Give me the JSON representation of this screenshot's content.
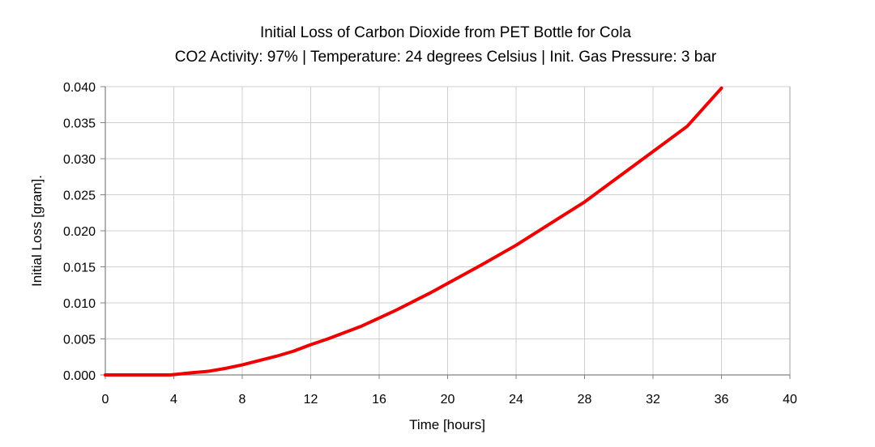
{
  "chart_data": {
    "type": "line",
    "title": "Initial Loss of Carbon Dioxide from PET Bottle for Cola",
    "subtitle": "CO2 Activity: 97% | Temperature: 24 degrees Celsius | Init. Gas Pressure: 3 bar",
    "xlabel": "Time [hours]",
    "ylabel": "Initial Loss [gram].",
    "xlim": [
      0,
      40
    ],
    "ylim": [
      0,
      0.04
    ],
    "x_ticks": [
      "0",
      "4",
      "8",
      "12",
      "16",
      "20",
      "24",
      "28",
      "32",
      "36",
      "40"
    ],
    "y_ticks": [
      "0.000",
      "0.005",
      "0.010",
      "0.015",
      "0.020",
      "0.025",
      "0.030",
      "0.035",
      "0.040"
    ],
    "grid": true,
    "series": [
      {
        "name": "Initial Loss",
        "color": "#ee0000",
        "x": [
          0,
          2,
          3.8,
          5,
          6,
          7,
          8,
          9,
          10,
          11,
          12,
          13,
          14,
          15,
          16,
          17,
          18,
          19,
          20,
          22,
          24,
          26,
          28,
          30,
          32,
          34,
          36
        ],
        "y": [
          0,
          0,
          0,
          0.0003,
          0.0005,
          0.0009,
          0.0014,
          0.002,
          0.0026,
          0.0033,
          0.0042,
          0.005,
          0.0059,
          0.0068,
          0.0079,
          0.009,
          0.0102,
          0.0114,
          0.0127,
          0.0153,
          0.018,
          0.021,
          0.024,
          0.0275,
          0.031,
          0.0345,
          0.0398
        ]
      }
    ]
  }
}
